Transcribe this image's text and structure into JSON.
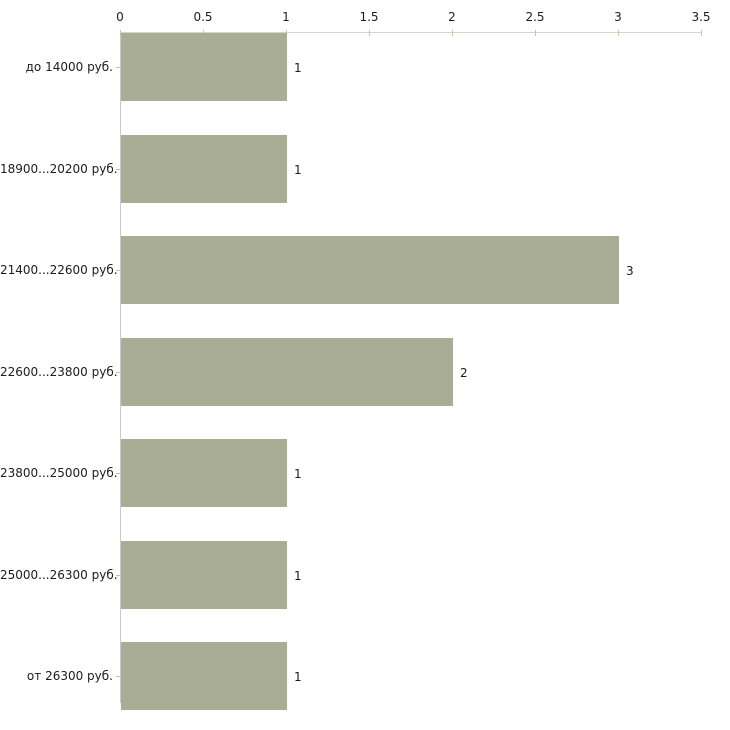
{
  "chart_data": {
    "type": "bar",
    "orientation": "horizontal",
    "title": "",
    "xlabel": "",
    "ylabel": "",
    "categories": [
      "до 14000 руб.",
      "18900...20200 руб.",
      "21400...22600 руб.",
      "22600...23800 руб.",
      "23800...25000 руб.",
      "25000...26300 руб.",
      "от 26300 руб."
    ],
    "values": [
      1,
      1,
      3,
      2,
      1,
      1,
      1
    ],
    "value_labels": [
      "1",
      "1",
      "3",
      "2",
      "1",
      "1",
      "1"
    ],
    "x_ticks": [
      0,
      0.5,
      1,
      1.5,
      2,
      2.5,
      3,
      3.5
    ],
    "x_tick_labels": [
      "0",
      "0.5",
      "1",
      "1.5",
      "2",
      "2.5",
      "3",
      "3.5"
    ],
    "xlim": [
      0,
      3.5
    ],
    "axis_position": "top",
    "grid": false,
    "legend": false,
    "colors": {
      "bar": "#a9ad95",
      "x_axis_line": "#d5d5cd",
      "y_axis_line": "#c9c9c9",
      "tick": "#c6c69e",
      "text": "#1c1c1c",
      "background": "#ffffff"
    }
  }
}
